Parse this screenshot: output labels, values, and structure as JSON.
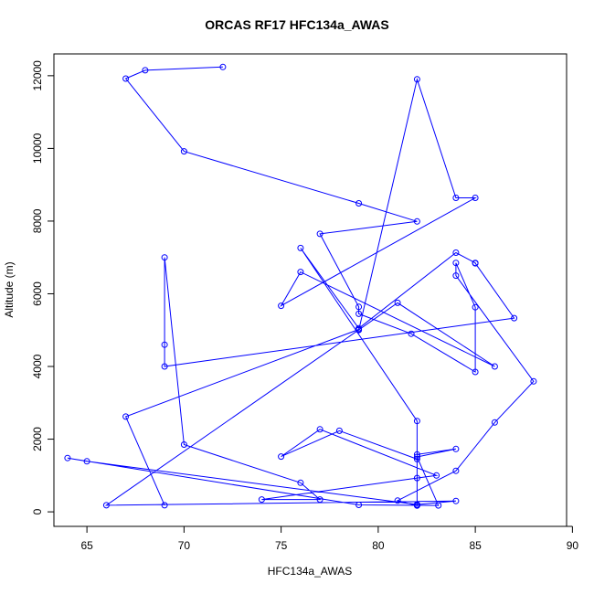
{
  "chart_data": {
    "type": "line",
    "title": "ORCAS RF17 HFC134a_AWAS",
    "xlabel": "HFC134a_AWAS",
    "ylabel": "Altitude (m)",
    "xlim": [
      63.3,
      89.7
    ],
    "ylim": [
      -400,
      12600
    ],
    "x_ticks": [
      65,
      70,
      75,
      80,
      85,
      90
    ],
    "y_ticks": [
      0,
      2000,
      4000,
      6000,
      8000,
      10000,
      12000
    ],
    "grid": false,
    "legend": "none",
    "line_color": "#0000ff",
    "marker": "open-circle",
    "series": [
      {
        "x": [
          72,
          68,
          67,
          70,
          79,
          82,
          77,
          79,
          79,
          81.7,
          85,
          85,
          84,
          84,
          88,
          86,
          84,
          81,
          82,
          82,
          82,
          76,
          79,
          84,
          85,
          85,
          87,
          69,
          69,
          69,
          70,
          76,
          77,
          74,
          82,
          83,
          77,
          75,
          78,
          82,
          82,
          84,
          82,
          83.1,
          79,
          64,
          65,
          82,
          84,
          66,
          81,
          86,
          76,
          75,
          85,
          84,
          82,
          79,
          79,
          67,
          69
        ],
        "y": [
          12240,
          12150,
          11920,
          9920,
          8490,
          7990,
          7650,
          5640,
          5450,
          4900,
          3850,
          5630,
          6850,
          6500,
          3590,
          2460,
          1130,
          310,
          170,
          185,
          2500,
          7260,
          5050,
          7130,
          6850,
          6840,
          5330,
          4000,
          4600,
          7000,
          1850,
          800,
          340,
          340,
          930,
          1000,
          2270,
          1520,
          2230,
          1450,
          1580,
          1730,
          1510,
          175,
          190,
          1480,
          1390,
          200,
          300,
          180,
          5750,
          4000,
          6600,
          5670,
          8640,
          8640,
          11900,
          5000,
          5020,
          2620,
          180
        ]
      }
    ]
  }
}
